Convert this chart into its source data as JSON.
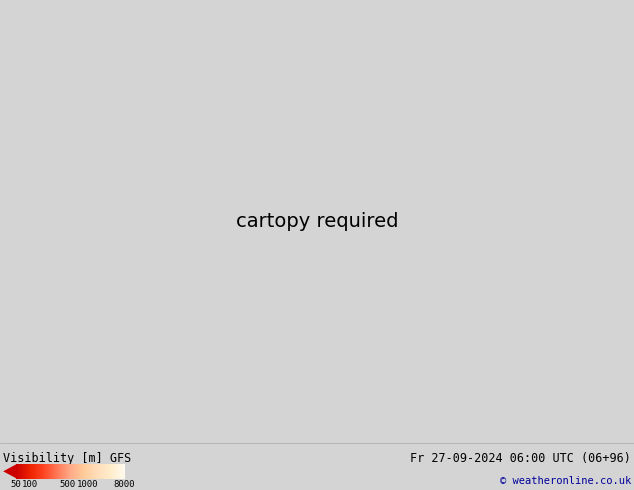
{
  "title_left": "Visibility [m] GFS",
  "title_right": "Fr 27-09-2024 06:00 UTC (06+96)",
  "copyright": "© weatheronline.co.uk",
  "colorbar_labels": [
    "50",
    "100",
    "500",
    "1000",
    "8000"
  ],
  "vis_colors": [
    "#cc0000",
    "#dd1100",
    "#ee2200",
    "#ff4400",
    "#ff6633",
    "#ff8855",
    "#ffaa77",
    "#ffcc99",
    "#ffddbb",
    "#ffeecc",
    "#fff5dd",
    "#ffffee",
    "#f5ffe8",
    "#eaffdd",
    "#d5f5bb",
    "#c8f0aa",
    "#bbee99",
    "#aae888",
    "#99e077",
    "#88d866",
    "#77d055",
    "#66c844",
    "#55c033"
  ],
  "ocean_color": "#d4d4d4",
  "land_color": "#b8dda0",
  "border_color": "#888888",
  "state_border_color": "#666666",
  "bottom_bg": "#e0e0e0",
  "label_color_blue": "#000099",
  "font_family": "monospace",
  "extent": [
    -175,
    -50,
    15,
    85
  ],
  "fig_width": 6.34,
  "fig_height": 4.9,
  "dpi": 100
}
